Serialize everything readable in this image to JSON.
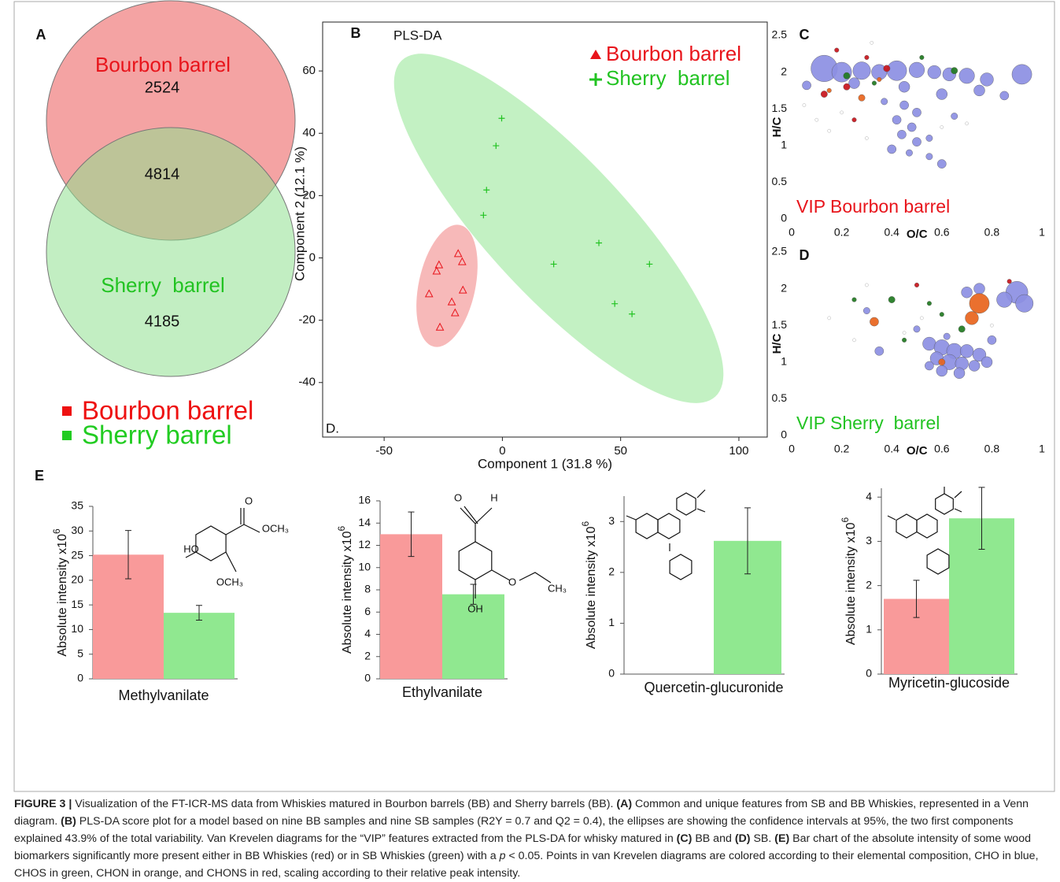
{
  "chart_data": [
    {
      "type": "venn",
      "panel": "A",
      "sets": [
        {
          "name": "Bourbon barrel",
          "color": "#f4a3a3",
          "label_color": "#e8141b",
          "value": 2524
        },
        {
          "name": "Sherry  barrel",
          "color": "#8fe08f",
          "label_color": "#22c322",
          "value": 4185
        }
      ],
      "overlap": 4814,
      "legend": [
        {
          "name": "Bourbon barrel",
          "color": "#ee1111"
        },
        {
          "name": "Sherry barrel",
          "color": "#22cc22"
        }
      ]
    },
    {
      "type": "scatter",
      "panel": "B",
      "title": "PLS-DA",
      "annotation": "D.",
      "xlabel": "Component 1 (31.8 %)",
      "ylabel": "Component 2 (12.1 %)",
      "xlim": [
        -76,
        112
      ],
      "ylim": [
        -57.5,
        75.7
      ],
      "xticks": [
        -50,
        0,
        50,
        100
      ],
      "yticks": [
        -40,
        -20,
        0,
        20,
        40,
        60
      ],
      "legend": "upper right",
      "series": [
        {
          "name": "Bourbon barrel",
          "color": "#e8141b",
          "marker": "triangle",
          "x": [
            -18.7,
            -17,
            -26.8,
            -27.8,
            -31,
            -16.7,
            -21.4,
            -20,
            -26.4
          ],
          "values": [
            1.3,
            -1.3,
            -2.3,
            -4.3,
            -11.6,
            -10.4,
            -14.2,
            -17.7,
            -22.3
          ]
        },
        {
          "name": "Sherry  barrel",
          "color": "#22c322",
          "marker": "plus",
          "x": [
            -0.3,
            -2.7,
            -6.7,
            -8,
            21.7,
            40.8,
            62.2,
            47.5,
            54.8
          ],
          "values": [
            44.8,
            36,
            21.8,
            13.7,
            -2,
            4.8,
            -2,
            -14.7,
            -18
          ]
        }
      ]
    },
    {
      "type": "bubble",
      "panel": "C",
      "xlabel": "O/C",
      "ylabel": "H/C",
      "annotation": "VIP Bourbon barrel",
      "annotation_color": "#e8141b",
      "xlim": [
        0,
        1
      ],
      "ylim": [
        0,
        2.5
      ],
      "xticks": [
        0,
        0.2,
        0.4,
        0.6,
        0.8,
        1
      ],
      "yticks": [
        0,
        0.5,
        1,
        1.5,
        2,
        2.5
      ],
      "series": [
        {
          "color": "#9a9a9a",
          "x": [
            0.05,
            0.1,
            0.15,
            0.2,
            0.3,
            0.32,
            0.6,
            0.7
          ],
          "values": [
            1.55,
            1.35,
            1.2,
            1.45,
            1.1,
            2.4,
            1.25,
            1.3
          ],
          "sizes": [
            1.5,
            1.5,
            1.5,
            1.5,
            1.5,
            1.5,
            1.5,
            1.5
          ]
        },
        {
          "color": "#8c8fe3",
          "x": [
            0.13,
            0.2,
            0.28,
            0.35,
            0.42,
            0.5,
            0.57,
            0.63,
            0.7,
            0.78,
            0.92,
            0.06,
            0.25,
            0.45,
            0.6,
            0.75,
            0.85,
            0.45,
            0.5,
            0.42,
            0.48,
            0.44,
            0.5,
            0.55,
            0.4,
            0.47,
            0.55,
            0.6,
            0.37,
            0.65
          ],
          "values": [
            2.05,
            2.0,
            2.02,
            2.0,
            2.02,
            2.03,
            2.0,
            1.97,
            1.95,
            1.9,
            1.97,
            1.82,
            1.85,
            1.8,
            1.7,
            1.75,
            1.68,
            1.55,
            1.45,
            1.35,
            1.25,
            1.15,
            1.05,
            1.1,
            0.95,
            0.9,
            0.85,
            0.75,
            1.6,
            1.4
          ],
          "sizes": [
            12,
            9,
            8,
            7,
            9,
            7,
            6,
            6,
            7,
            6,
            9,
            4,
            5,
            5,
            5,
            5,
            4,
            4,
            4,
            4,
            4,
            4,
            4,
            3,
            4,
            3,
            3,
            4,
            3,
            3
          ]
        },
        {
          "color": "#1f7a1f",
          "x": [
            0.22,
            0.33,
            0.65,
            0.52
          ],
          "values": [
            1.95,
            1.85,
            2.02,
            2.2
          ],
          "sizes": [
            3,
            2,
            3,
            2
          ]
        },
        {
          "color": "#e8641c",
          "x": [
            0.28,
            0.35,
            0.15
          ],
          "values": [
            1.65,
            1.9,
            1.75
          ],
          "sizes": [
            3,
            2,
            2
          ]
        },
        {
          "color": "#c8141b",
          "x": [
            0.13,
            0.22,
            0.3,
            0.38,
            0.25,
            0.18
          ],
          "values": [
            1.7,
            1.8,
            2.2,
            2.05,
            1.35,
            2.3
          ],
          "sizes": [
            3,
            3,
            2,
            3,
            2,
            2
          ]
        }
      ]
    },
    {
      "type": "bubble",
      "panel": "D",
      "xlabel": "O/C",
      "ylabel": "H/C",
      "annotation": "VIP Sherry  barrel",
      "annotation_color": "#22c322",
      "xlim": [
        0,
        1
      ],
      "ylim": [
        0,
        2.5
      ],
      "xticks": [
        0,
        0.2,
        0.4,
        0.6,
        0.8,
        1
      ],
      "yticks": [
        0,
        0.5,
        1,
        1.5,
        2,
        2.5
      ],
      "series": [
        {
          "color": "#9a9a9a",
          "x": [
            0.15,
            0.25,
            0.3,
            0.45,
            0.52,
            0.8
          ],
          "values": [
            1.6,
            1.3,
            2.05,
            1.4,
            1.6,
            1.5
          ],
          "sizes": [
            1.5,
            1.5,
            1.5,
            1.5,
            1.5,
            1.5
          ]
        },
        {
          "color": "#8c8fe3",
          "x": [
            0.9,
            0.93,
            0.85,
            0.7,
            0.75,
            0.55,
            0.6,
            0.65,
            0.7,
            0.75,
            0.58,
            0.63,
            0.68,
            0.73,
            0.78,
            0.6,
            0.67,
            0.55,
            0.35,
            0.3,
            0.5,
            0.8,
            0.62
          ],
          "values": [
            1.95,
            1.8,
            1.85,
            1.95,
            2.0,
            1.25,
            1.2,
            1.15,
            1.15,
            1.1,
            1.05,
            1.0,
            0.98,
            0.95,
            1.0,
            0.88,
            0.85,
            0.95,
            1.15,
            1.7,
            1.45,
            1.3,
            1.35
          ],
          "sizes": [
            10,
            8,
            7,
            5,
            5,
            6,
            7,
            7,
            6,
            6,
            6,
            7,
            6,
            5,
            5,
            5,
            5,
            4,
            4,
            3,
            3,
            4,
            3
          ]
        },
        {
          "color": "#1f7a1f",
          "x": [
            0.4,
            0.55,
            0.68,
            0.45,
            0.25,
            0.6
          ],
          "values": [
            1.85,
            1.8,
            1.45,
            1.3,
            1.85,
            1.65
          ],
          "sizes": [
            3,
            2,
            3,
            2,
            2,
            2
          ]
        },
        {
          "color": "#e8641c",
          "x": [
            0.33,
            0.72,
            0.75,
            0.6
          ],
          "values": [
            1.55,
            1.6,
            1.8,
            1.0
          ],
          "sizes": [
            4,
            6,
            9,
            3
          ]
        },
        {
          "color": "#c8141b",
          "x": [
            0.87,
            0.5
          ],
          "values": [
            2.1,
            2.05
          ],
          "sizes": [
            2,
            2
          ]
        }
      ]
    },
    {
      "type": "bar",
      "panel": "E",
      "xlabel": "Methylvanilate",
      "ylabel": "Absolute intensity x10",
      "ylabel_superscript": "6",
      "categories": [
        null,
        null
      ],
      "values": [
        25.2,
        13.4
      ],
      "errors": [
        4.9,
        1.5
      ],
      "colors": [
        "#f99a9a",
        "#90e890"
      ],
      "ylim": [
        0,
        35
      ],
      "yticks": [
        0,
        5,
        10,
        15,
        20,
        25,
        30,
        35
      ],
      "structure_labels": [
        "O",
        "OCH₃",
        "HO",
        "OCH₃"
      ]
    },
    {
      "type": "bar",
      "xlabel": "Ethylvanilate",
      "ylabel": "Absolute intensity x10",
      "ylabel_superscript": "6",
      "categories": [
        null,
        null
      ],
      "values": [
        13,
        7.6
      ],
      "errors": [
        2,
        0.9
      ],
      "colors": [
        "#f99a9a",
        "#90e890"
      ],
      "ylim": [
        0,
        16
      ],
      "yticks": [
        0,
        2,
        4,
        6,
        8,
        10,
        12,
        14,
        16
      ],
      "structure_labels": [
        "O",
        "H",
        "O",
        "CH₃",
        "OH"
      ]
    },
    {
      "type": "bar",
      "xlabel": "Quercetin-glucuronide",
      "ylabel": "Absolute intensity x10",
      "ylabel_superscript": "6",
      "categories": [
        null,
        null
      ],
      "values": [
        null,
        2.62
      ],
      "errors": [
        null,
        0.65
      ],
      "colors": [
        "#f99a9a",
        "#90e890"
      ],
      "ylim": [
        0,
        3.5
      ],
      "yticks": [
        0,
        1,
        2,
        3
      ]
    },
    {
      "type": "bar",
      "xlabel": "Myricetin-glucoside",
      "ylabel": "Absolute intensity x10",
      "ylabel_superscript": "6",
      "categories": [
        null,
        null
      ],
      "values": [
        1.7,
        3.52
      ],
      "errors": [
        0.42,
        0.7
      ],
      "colors": [
        "#f99a9a",
        "#90e890"
      ],
      "ylim": [
        0,
        4.2
      ],
      "yticks": [
        0,
        1,
        2,
        3,
        4
      ]
    }
  ],
  "caption": {
    "segments": [
      {
        "text": "FIGURE 3 |",
        "bold": true
      },
      {
        "text": " Visualization of the FT-ICR-MS data from Whiskies matured in Bourbon barrels (BB) and Sherry barrels (BB). "
      },
      {
        "text": "(A)",
        "bold": true
      },
      {
        "text": " Common and unique features from SB and BB Whiskies, represented in a Venn diagram. "
      },
      {
        "text": "(B)",
        "bold": true
      },
      {
        "text": " PLS-DA score plot for a model based on nine BB samples and nine SB samples (R2Y = 0.7 and Q2 = 0.4), the ellipses are showing the confidence intervals at 95%, the two first components explained 43.9% of the total variability. Van Krevelen diagrams for the “VIP” features extracted from the PLS-DA for whisky matured in "
      },
      {
        "text": "(C)",
        "bold": true
      },
      {
        "text": " BB and "
      },
      {
        "text": "(D)",
        "bold": true
      },
      {
        "text": " SB. "
      },
      {
        "text": "(E)",
        "bold": true
      },
      {
        "text": " Bar chart of the absolute intensity of some wood biomarkers significantly more present either in BB Whiskies (red) or in SB Whiskies (green) with a "
      },
      {
        "text": "p",
        "italic": true
      },
      {
        "text": " < 0.05. Points in van Krevelen diagrams are colored according to their elemental composition, CHO in blue, CHOS in green, CHON in orange, and CHONS in red, scaling according to their relative peak intensity."
      }
    ]
  }
}
